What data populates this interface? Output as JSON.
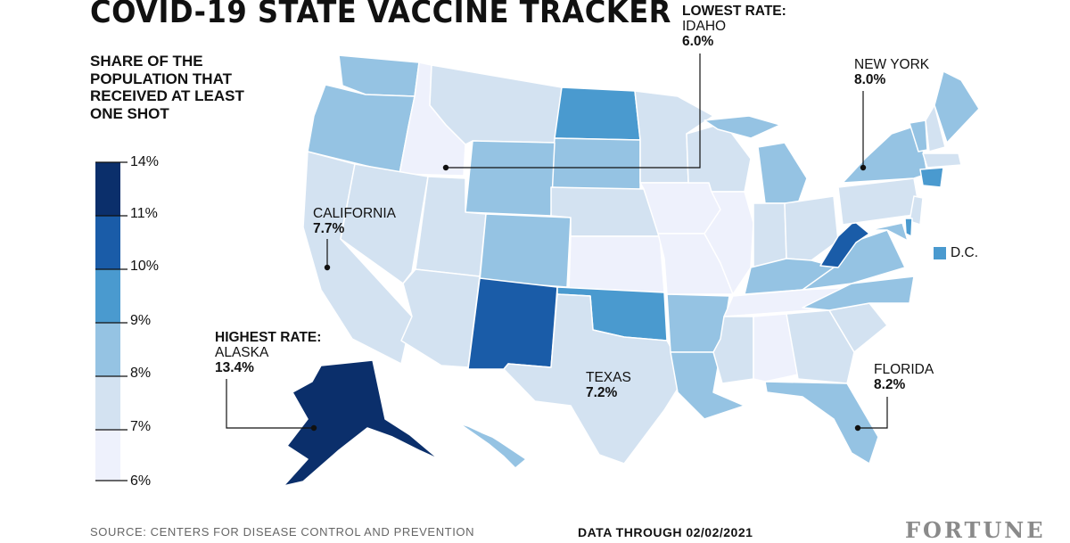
{
  "title": "COVID-19 STATE VACCINE TRACKER",
  "legend": {
    "title": "SHARE OF THE POPULATION THAT RECEIVED AT LEAST ONE SHOT",
    "bins": [
      {
        "label": "14%",
        "color": "#0b2f6b"
      },
      {
        "label": "11%",
        "color": "#1a5ca8"
      },
      {
        "label": "10%",
        "color": "#4a9acf"
      },
      {
        "label": "9%",
        "color": "#95c3e3"
      },
      {
        "label": "8%",
        "color": "#d3e2f1"
      },
      {
        "label": "7%",
        "color": "#eef1fc"
      },
      {
        "label": "6%",
        "color": ""
      }
    ]
  },
  "callouts": {
    "lowest": {
      "head": "LOWEST RATE:",
      "state": "IDAHO",
      "value": "6.0%"
    },
    "highest": {
      "head": "HIGHEST RATE:",
      "state": "ALASKA",
      "value": "13.4%"
    },
    "ny": {
      "state": "NEW YORK",
      "value": "8.0%"
    },
    "ca": {
      "state": "CALIFORNIA",
      "value": "7.7%"
    },
    "tx": {
      "state": "TEXAS",
      "value": "7.2%"
    },
    "fl": {
      "state": "FLORIDA",
      "value": "8.2%"
    }
  },
  "dc": {
    "label": "D.C.",
    "color": "#4a9acf"
  },
  "footer": {
    "source": "SOURCE: CENTERS FOR DISEASE CONTROL AND PREVENTION",
    "date": "DATA THROUGH 02/02/2021",
    "brand": "FORTUNE"
  },
  "colors": {
    "darkest": "#0b2f6b",
    "dark": "#1a5ca8",
    "mid": "#4a9acf",
    "light": "#95c3e3",
    "pale": "#d3e2f1",
    "lightest": "#eef1fc"
  }
}
